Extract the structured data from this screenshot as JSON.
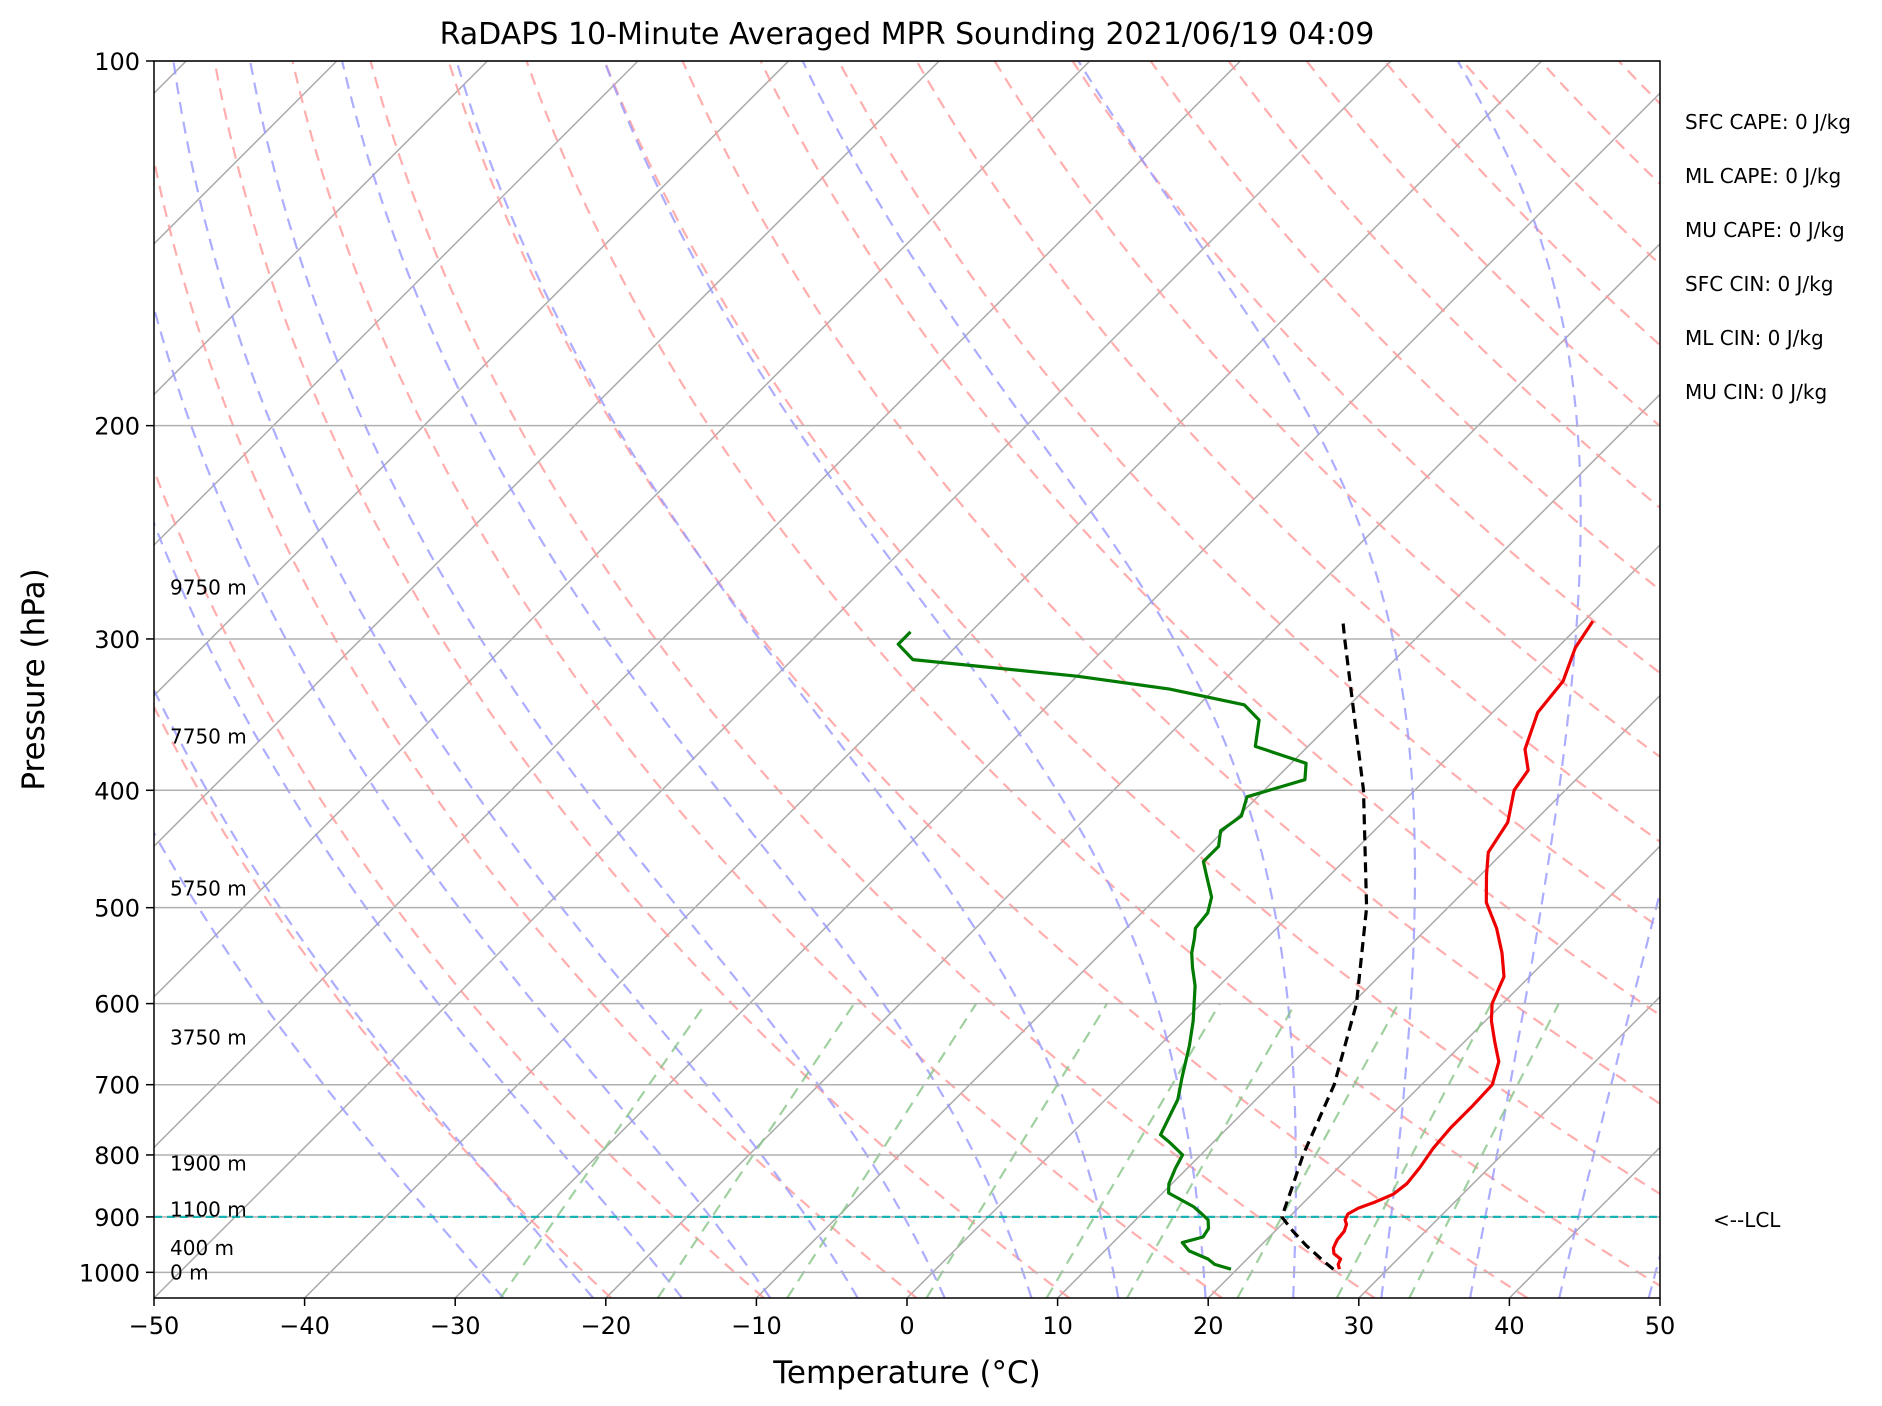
{
  "chart_data": {
    "type": "line",
    "title": "RaDAPS 10-Minute Averaged MPR Sounding 2021/06/19 04:09",
    "xlabel": "Temperature (°C)",
    "ylabel": "Pressure (hPa)",
    "xlim": [
      -50,
      50
    ],
    "ylim": [
      1050,
      100
    ],
    "y_scale": "log",
    "skew_t": true,
    "x_ticks": [
      -50,
      -40,
      -30,
      -20,
      -10,
      0,
      10,
      20,
      30,
      40,
      50
    ],
    "x_tick_labels": [
      "−50",
      "−40",
      "−30",
      "−20",
      "−10",
      "0",
      "10",
      "20",
      "30",
      "40",
      "50"
    ],
    "y_ticks": [
      1000,
      900,
      800,
      700,
      600,
      500,
      400,
      300,
      200,
      100
    ],
    "y_tick_labels": [
      "1000",
      "900",
      "800",
      "700",
      "600",
      "500",
      "400",
      "300",
      "200",
      "100"
    ],
    "grid": true,
    "series": [
      {
        "kind": "temperature",
        "color": "#ee0000",
        "points": [
          [
            994,
            26.8
          ],
          [
            985,
            26.4
          ],
          [
            975,
            26.2
          ],
          [
            965,
            25.4
          ],
          [
            955,
            25.0
          ],
          [
            940,
            24.7
          ],
          [
            925,
            24.6
          ],
          [
            913,
            24.3
          ],
          [
            905,
            23.9
          ],
          [
            895,
            23.7
          ],
          [
            885,
            24.0
          ],
          [
            875,
            24.7
          ],
          [
            862,
            25.4
          ],
          [
            845,
            25.6
          ],
          [
            820,
            25.4
          ],
          [
            790,
            25.0
          ],
          [
            760,
            24.8
          ],
          [
            730,
            24.8
          ],
          [
            700,
            24.7
          ],
          [
            670,
            23.6
          ],
          [
            645,
            22.0
          ],
          [
            620,
            20.4
          ],
          [
            600,
            19.3
          ],
          [
            570,
            18.3
          ],
          [
            545,
            16.6
          ],
          [
            520,
            14.6
          ],
          [
            495,
            12.2
          ],
          [
            470,
            10.4
          ],
          [
            450,
            9.0
          ],
          [
            425,
            8.3
          ],
          [
            400,
            6.6
          ],
          [
            385,
            6.2
          ],
          [
            370,
            4.6
          ],
          [
            345,
            3.0
          ],
          [
            325,
            2.6
          ],
          [
            305,
            1.2
          ],
          [
            290,
            0.6
          ]
        ]
      },
      {
        "kind": "dewpoint",
        "color": "#007a00",
        "points": [
          [
            994,
            19.6
          ],
          [
            985,
            18.2
          ],
          [
            975,
            17.4
          ],
          [
            960,
            15.6
          ],
          [
            945,
            14.6
          ],
          [
            935,
            15.6
          ],
          [
            920,
            15.4
          ],
          [
            905,
            14.8
          ],
          [
            895,
            14.0
          ],
          [
            883,
            13.0
          ],
          [
            860,
            10.4
          ],
          [
            845,
            9.8
          ],
          [
            820,
            9.2
          ],
          [
            800,
            8.8
          ],
          [
            780,
            7.0
          ],
          [
            770,
            6.0
          ],
          [
            720,
            4.8
          ],
          [
            690,
            3.6
          ],
          [
            650,
            2.0
          ],
          [
            620,
            0.6
          ],
          [
            580,
            -1.6
          ],
          [
            560,
            -3.0
          ],
          [
            545,
            -4.0
          ],
          [
            530,
            -4.8
          ],
          [
            520,
            -5.4
          ],
          [
            505,
            -5.6
          ],
          [
            490,
            -6.4
          ],
          [
            470,
            -8.2
          ],
          [
            458,
            -9.3
          ],
          [
            445,
            -9.3
          ],
          [
            432,
            -10.2
          ],
          [
            420,
            -9.8
          ],
          [
            405,
            -10.7
          ],
          [
            392,
            -8.0
          ],
          [
            380,
            -9.0
          ],
          [
            368,
            -13.5
          ],
          [
            350,
            -15.0
          ],
          [
            340,
            -17.0
          ],
          [
            330,
            -23.0
          ],
          [
            322,
            -30.0
          ],
          [
            312,
            -42.0
          ],
          [
            303,
            -44.0
          ],
          [
            296,
            -44.0
          ]
        ]
      },
      {
        "kind": "parcel",
        "color": "#000000",
        "dashed": true,
        "points": [
          [
            994,
            26.4
          ],
          [
            980,
            25.3
          ],
          [
            950,
            23.0
          ],
          [
            925,
            21.2
          ],
          [
            900,
            19.5
          ],
          [
            850,
            18.2
          ],
          [
            800,
            16.8
          ],
          [
            700,
            14.2
          ],
          [
            600,
            10.3
          ],
          [
            500,
            4.6
          ],
          [
            400,
            -3.4
          ],
          [
            300,
            -14.7
          ],
          [
            290,
            -16.0
          ]
        ]
      }
    ],
    "lcl_pressure": 900,
    "lcl_label": "<--LCL",
    "height_labels": [
      {
        "text": "0 m",
        "pressure": 1000
      },
      {
        "text": "400 m",
        "pressure": 955
      },
      {
        "text": "1100 m",
        "pressure": 887
      },
      {
        "text": "1900 m",
        "pressure": 813
      },
      {
        "text": "3750 m",
        "pressure": 640
      },
      {
        "text": "5750 m",
        "pressure": 482
      },
      {
        "text": "7750 m",
        "pressure": 361
      },
      {
        "text": "9750 m",
        "pressure": 272
      }
    ],
    "parameters": [
      "SFC CAPE: 0 J/kg",
      "ML CAPE: 0 J/kg",
      "MU CAPE: 0 J/kg",
      "SFC CIN: 0 J/kg",
      "ML CIN: 0 J/kg",
      "MU CIN: 0 J/kg"
    ],
    "colors": {
      "isotherm": "#aaaaaa",
      "dry_adiabat": "#ff9999",
      "moist_adiabat": "#9999ff",
      "mixing_ratio": "#88c488",
      "lcl_line": "#1ab3b3"
    }
  }
}
